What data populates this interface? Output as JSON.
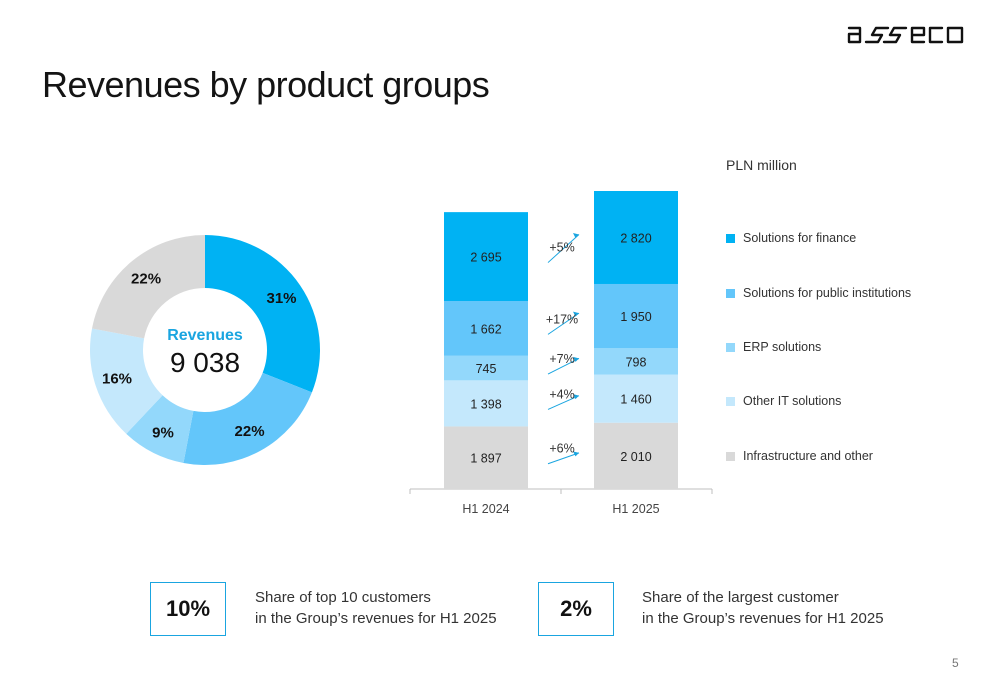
{
  "header": {
    "logo_text": "asseco",
    "title": "Revenues by product groups"
  },
  "colors": {
    "finance": "#00b2f3",
    "public": "#63c6fa",
    "erp": "#93d8fb",
    "other_it": "#c4e8fc",
    "infra": "#d9d9d9",
    "growth_arrow": "#1aa5e0",
    "kpi_border": "#1aa5e0"
  },
  "chart_data": [
    {
      "type": "pie",
      "center_label": "Revenues",
      "center_value": "9 038",
      "slices": [
        {
          "category": "Solutions for finance",
          "value": 31,
          "label": "31%",
          "color": "#00b2f3"
        },
        {
          "category": "Solutions for public institutions",
          "value": 22,
          "label": "22%",
          "color": "#63c6fa"
        },
        {
          "category": "ERP solutions",
          "value": 9,
          "label": "9%",
          "color": "#93d8fb"
        },
        {
          "category": "Other IT solutions",
          "value": 16,
          "label": "16%",
          "color": "#c4e8fc"
        },
        {
          "category": "Infrastructure and other",
          "value": 22,
          "label": "22%",
          "color": "#d9d9d9"
        }
      ]
    },
    {
      "type": "bar",
      "stacked": true,
      "unit_label": "PLN million",
      "categories": [
        "H1 2024",
        "H1 2025"
      ],
      "series": [
        {
          "name": "Infrastructure and other",
          "values": [
            1897,
            2010
          ],
          "labels": [
            "1 897",
            "2 010"
          ],
          "growth": "+6%",
          "color": "#d9d9d9"
        },
        {
          "name": "Other IT solutions",
          "values": [
            1398,
            1460
          ],
          "labels": [
            "1 398",
            "1 460"
          ],
          "growth": "+4%",
          "color": "#c4e8fc"
        },
        {
          "name": "ERP solutions",
          "values": [
            745,
            798
          ],
          "labels": [
            "745",
            "798"
          ],
          "growth": "+7%",
          "color": "#93d8fb"
        },
        {
          "name": "Solutions for public institutions",
          "values": [
            1662,
            1950
          ],
          "labels": [
            "1 662",
            "1 950"
          ],
          "growth": "+17%",
          "color": "#63c6fa"
        },
        {
          "name": "Solutions for finance",
          "values": [
            2695,
            2820
          ],
          "labels": [
            "2 695",
            "2 820"
          ],
          "growth": "+5%",
          "color": "#00b2f3"
        }
      ],
      "legend": {
        "placement": "right",
        "items": [
          {
            "label": "Solutions for finance",
            "color": "#00b2f3"
          },
          {
            "label": "Solutions for public institutions",
            "color": "#63c6fa"
          },
          {
            "label": "ERP solutions",
            "color": "#93d8fb"
          },
          {
            "label": "Other IT solutions",
            "color": "#c4e8fc"
          },
          {
            "label": "Infrastructure and other",
            "color": "#d9d9d9"
          }
        ]
      },
      "grid": false
    }
  ],
  "kpis": [
    {
      "value": "10%",
      "line1": "Share of top 10 customers",
      "line2": "in the Group’s revenues for H1 2025"
    },
    {
      "value": "2%",
      "line1": "Share of the largest customer",
      "line2": "in the Group’s revenues for H1 2025"
    }
  ],
  "footer": {
    "page_number": "5"
  }
}
